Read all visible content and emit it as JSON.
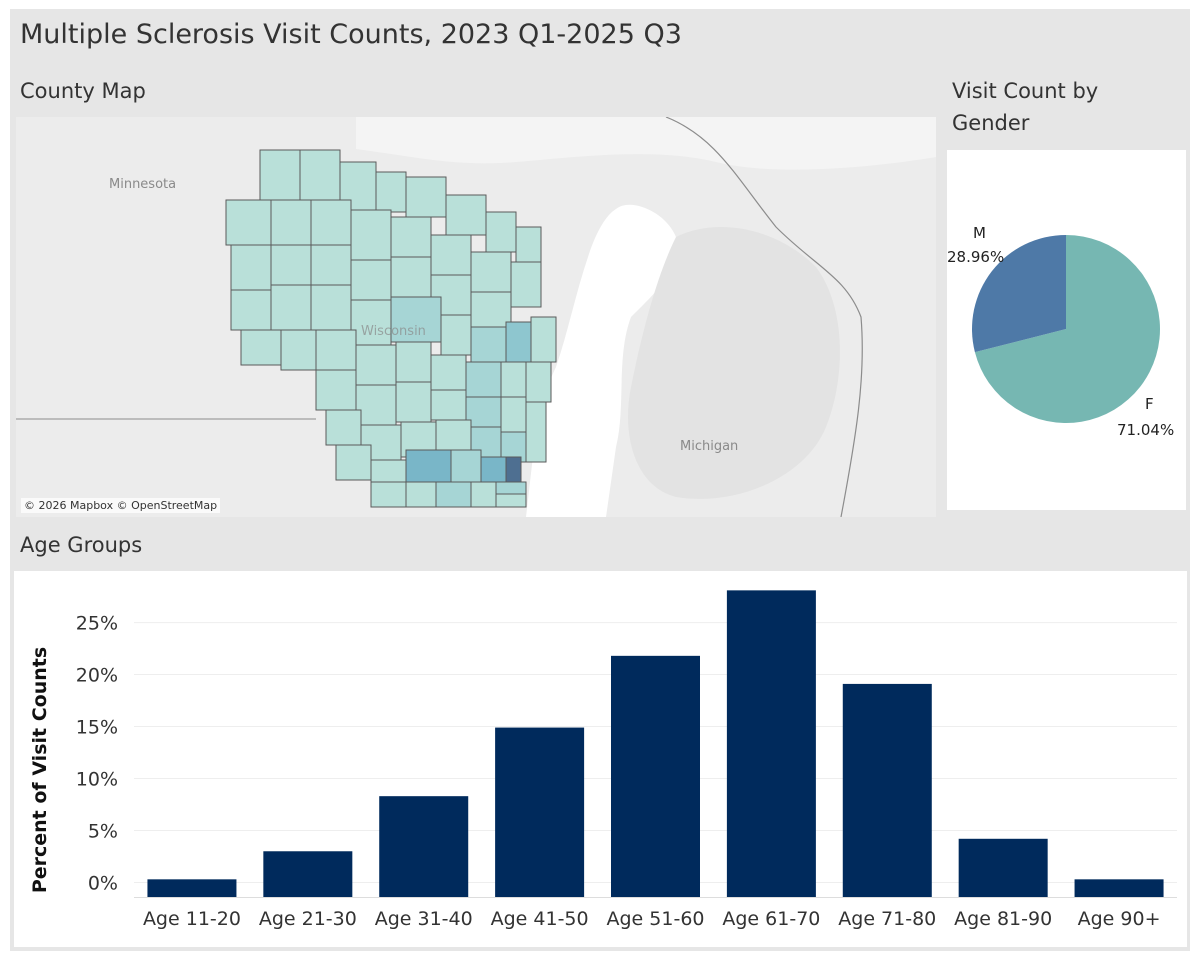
{
  "dashboard": {
    "title": "Multiple Sclerosis Visit Counts, 2023 Q1-2025 Q3"
  },
  "map": {
    "title": "County Map",
    "labels": {
      "minnesota": "Minnesota",
      "wisconsin": "Wisconsin",
      "michigan": "Michigan"
    },
    "attribution": "© 2026 Mapbox © OpenStreetMap",
    "colors": {
      "base": "#b9e0d9",
      "light": "#a6d5d5",
      "medium": "#8ec6cf",
      "high": "#79b6c8",
      "highest": "#4e6f91",
      "border": "#5a5a5a"
    }
  },
  "gender": {
    "title_line1": "Visit Count by",
    "title_line2": "Gender"
  },
  "age": {
    "title": "Age Groups"
  },
  "chart_data": [
    {
      "type": "pie",
      "title": "Visit Count by Gender",
      "categories": [
        "F",
        "M"
      ],
      "values": [
        71.04,
        28.96
      ],
      "value_labels": [
        "71.04%",
        "28.96%"
      ],
      "colors": [
        "#76b7b2",
        "#4e79a7"
      ]
    },
    {
      "type": "bar",
      "title": "Age Groups",
      "categories": [
        "Age 11-20",
        "Age 21-30",
        "Age 31-40",
        "Age 41-50",
        "Age 51-60",
        "Age 61-70",
        "Age 71-80",
        "Age 81-90",
        "Age 90+"
      ],
      "values": [
        0.3,
        3.0,
        8.3,
        14.9,
        21.8,
        28.1,
        19.1,
        4.2,
        0.3
      ],
      "ylabel": "Percent of Visit Counts",
      "xlabel": "",
      "ylim": [
        -1.4,
        29
      ],
      "yticks": [
        0,
        5,
        10,
        15,
        20,
        25
      ],
      "ytick_labels": [
        "0%",
        "5%",
        "10%",
        "15%",
        "20%",
        "25%"
      ],
      "bar_color": "#002a5c",
      "grid": true
    }
  ]
}
